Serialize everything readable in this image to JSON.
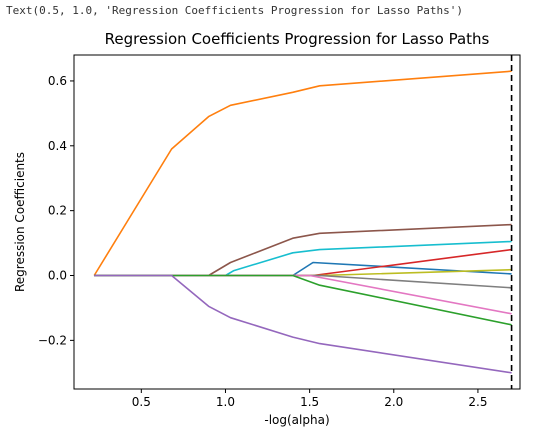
{
  "output_text": "Text(0.5, 1.0, 'Regression Coefficients Progression for Lasso Paths')",
  "chart_data": {
    "type": "line",
    "title": "Regression Coefficients Progression for Lasso Paths",
    "xlabel": "-log(alpha)",
    "ylabel": "Regression Coefficients",
    "xlim": [
      0.1,
      2.75
    ],
    "ylim": [
      -0.35,
      0.68
    ],
    "xticks": [
      0.5,
      1.0,
      1.5,
      2.0,
      2.5
    ],
    "xtick_labels": [
      "0.5",
      "1.0",
      "1.5",
      "2.0",
      "2.5"
    ],
    "yticks": [
      -0.2,
      0.0,
      0.2,
      0.4,
      0.6
    ],
    "ytick_labels": [
      "−0.2",
      "0.0",
      "0.2",
      "0.4",
      "0.6"
    ],
    "grid": false,
    "legend": false,
    "vline": {
      "x": 2.7,
      "style": "dashed",
      "color": "#000000"
    },
    "series": [
      {
        "color": "#ff7f0e",
        "x": [
          0.22,
          0.68,
          0.9,
          1.03,
          1.4,
          1.56,
          2.7
        ],
        "y": [
          0.0,
          0.39,
          0.49,
          0.525,
          0.565,
          0.585,
          0.63
        ]
      },
      {
        "color": "#8c564b",
        "x": [
          0.22,
          0.9,
          1.03,
          1.4,
          1.56,
          2.7
        ],
        "y": [
          0.0,
          0.0,
          0.04,
          0.115,
          0.13,
          0.157
        ]
      },
      {
        "color": "#17becf",
        "x": [
          0.22,
          1.0,
          1.05,
          1.4,
          1.56,
          2.7
        ],
        "y": [
          0.0,
          0.0,
          0.015,
          0.07,
          0.08,
          0.105
        ]
      },
      {
        "color": "#1f77b4",
        "x": [
          0.22,
          1.4,
          1.52,
          2.7
        ],
        "y": [
          0.0,
          0.0,
          0.04,
          0.005
        ]
      },
      {
        "color": "#d62728",
        "x": [
          0.22,
          1.52,
          2.7
        ],
        "y": [
          0.0,
          0.0,
          0.08
        ]
      },
      {
        "color": "#bcbd22",
        "x": [
          0.22,
          1.56,
          2.7
        ],
        "y": [
          0.0,
          0.0,
          0.018
        ]
      },
      {
        "color": "#7f7f7f",
        "x": [
          0.22,
          1.56,
          2.7
        ],
        "y": [
          0.0,
          0.0,
          -0.038
        ]
      },
      {
        "color": "#e377c2",
        "x": [
          0.22,
          1.5,
          2.7
        ],
        "y": [
          0.0,
          0.0,
          -0.118
        ]
      },
      {
        "color": "#2ca02c",
        "x": [
          0.22,
          1.4,
          1.56,
          2.7
        ],
        "y": [
          0.0,
          0.0,
          -0.03,
          -0.152
        ]
      },
      {
        "color": "#9467bd",
        "x": [
          0.22,
          0.68,
          0.9,
          1.03,
          1.4,
          1.56,
          2.7
        ],
        "y": [
          0.0,
          0.0,
          -0.095,
          -0.13,
          -0.19,
          -0.21,
          -0.3
        ]
      }
    ]
  }
}
